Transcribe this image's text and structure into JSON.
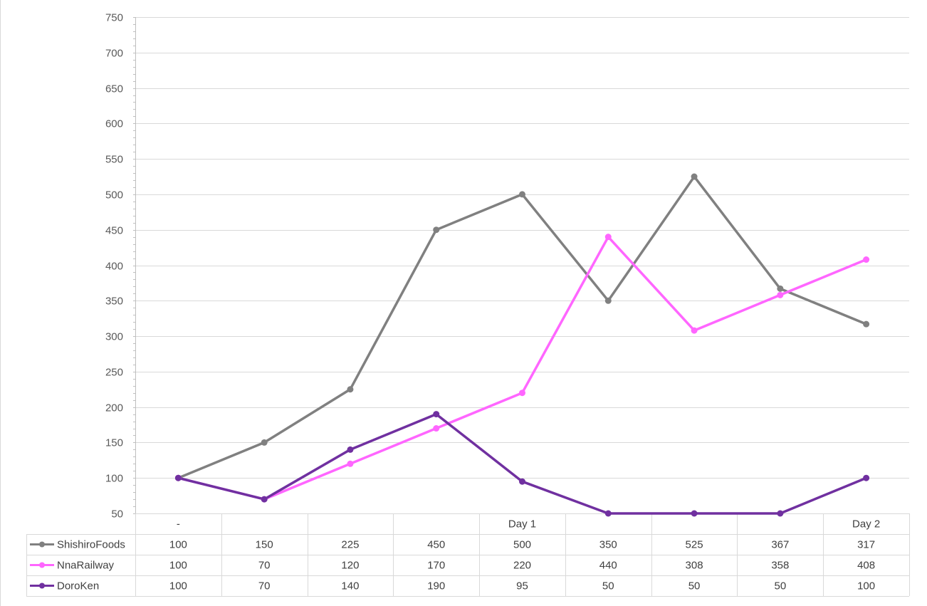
{
  "chart_data": {
    "type": "line",
    "categories": [
      "-",
      "",
      "",
      "",
      "Day 1",
      "",
      "",
      "",
      "Day 2"
    ],
    "ylim": [
      50,
      750
    ],
    "yticks": [
      50,
      100,
      150,
      200,
      250,
      300,
      350,
      400,
      450,
      500,
      550,
      600,
      650,
      700,
      750
    ],
    "grid": true,
    "legend": "data-table",
    "series": [
      {
        "name": "ShishiroFoods",
        "color": "#808080",
        "values": [
          100,
          150,
          225,
          450,
          500,
          350,
          525,
          367,
          317
        ]
      },
      {
        "name": "NnaRailway",
        "color": "#ff66ff",
        "values": [
          100,
          70,
          120,
          170,
          220,
          440,
          308,
          358,
          408
        ]
      },
      {
        "name": "DoroKen",
        "color": "#7030a0",
        "values": [
          100,
          70,
          140,
          190,
          95,
          50,
          50,
          50,
          100
        ]
      }
    ]
  }
}
